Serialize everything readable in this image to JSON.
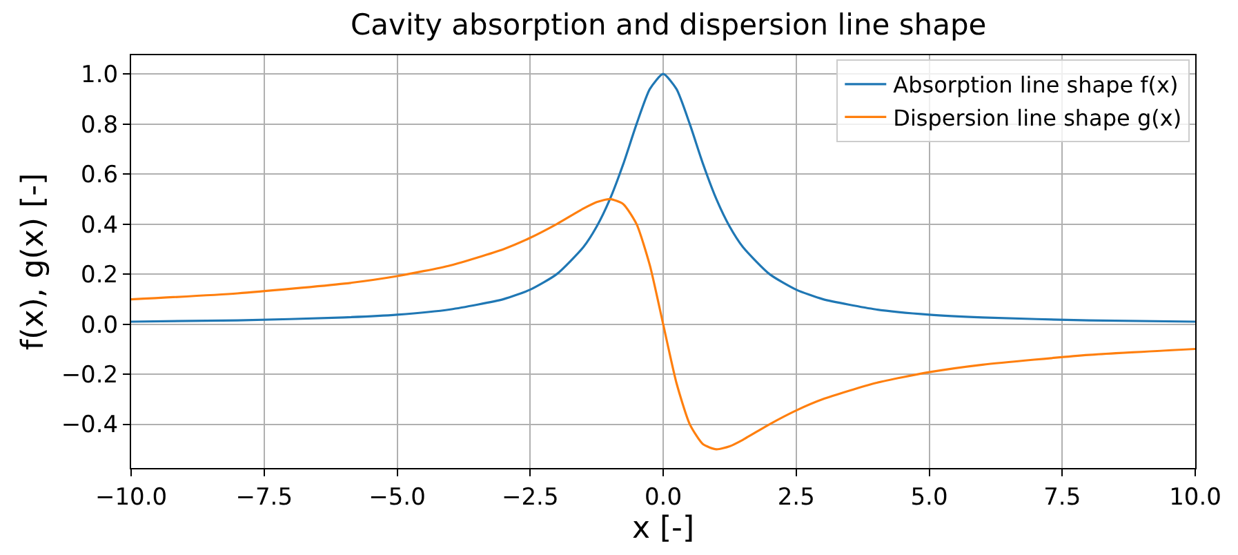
{
  "chart_data": {
    "type": "line",
    "title": "Cavity absorption and dispersion line shape",
    "xlabel": "x [-]",
    "ylabel": "f(x), g(x) [-]",
    "x": [
      -10,
      -8,
      -6,
      -5,
      -4,
      -3,
      -2.5,
      -2,
      -1.5,
      -1.25,
      -1,
      -0.75,
      -0.5,
      -0.25,
      0,
      0.25,
      0.5,
      0.75,
      1,
      1.25,
      1.5,
      2,
      2.5,
      3,
      4,
      5,
      6,
      8,
      10
    ],
    "series": [
      {
        "name": "Absorption line shape f(x)",
        "color": "#1f77b4",
        "values": [
          0.01,
          0.015,
          0.027,
          0.038,
          0.059,
          0.1,
          0.138,
          0.2,
          0.308,
          0.39,
          0.5,
          0.64,
          0.8,
          0.94,
          1,
          0.94,
          0.8,
          0.64,
          0.5,
          0.39,
          0.308,
          0.2,
          0.138,
          0.1,
          0.059,
          0.038,
          0.027,
          0.015,
          0.01
        ]
      },
      {
        "name": "Dispersion line shape g(x)",
        "color": "#ff7f0e",
        "values": [
          0.099,
          0.123,
          0.162,
          0.192,
          0.235,
          0.3,
          0.345,
          0.4,
          0.462,
          0.488,
          0.5,
          0.48,
          0.4,
          0.235,
          0,
          -0.235,
          -0.4,
          -0.48,
          -0.5,
          -0.488,
          -0.462,
          -0.4,
          -0.345,
          -0.3,
          -0.235,
          -0.192,
          -0.162,
          -0.123,
          -0.099
        ]
      }
    ],
    "xlim": [
      -10,
      10
    ],
    "xticks": [
      {
        "value": -10,
        "label": "−10.0"
      },
      {
        "value": -7.5,
        "label": "−7.5"
      },
      {
        "value": -5,
        "label": "−5.0"
      },
      {
        "value": -2.5,
        "label": "−2.5"
      },
      {
        "value": 0,
        "label": "0.0"
      },
      {
        "value": 2.5,
        "label": "2.5"
      },
      {
        "value": 5,
        "label": "5.0"
      },
      {
        "value": 7.5,
        "label": "7.5"
      },
      {
        "value": 10,
        "label": "10.0"
      }
    ],
    "ylim": [
      -0.575,
      1.075
    ],
    "yticks": [
      {
        "value": -0.4,
        "label": "−0.4"
      },
      {
        "value": -0.2,
        "label": "−0.2"
      },
      {
        "value": 0,
        "label": "0.0"
      },
      {
        "value": 0.2,
        "label": "0.2"
      },
      {
        "value": 0.4,
        "label": "0.4"
      },
      {
        "value": 0.6,
        "label": "0.6"
      },
      {
        "value": 0.8,
        "label": "0.8"
      },
      {
        "value": 1,
        "label": "1.0"
      }
    ],
    "grid": true,
    "legend": "top right",
    "line_style": "solid",
    "marker": "none"
  }
}
